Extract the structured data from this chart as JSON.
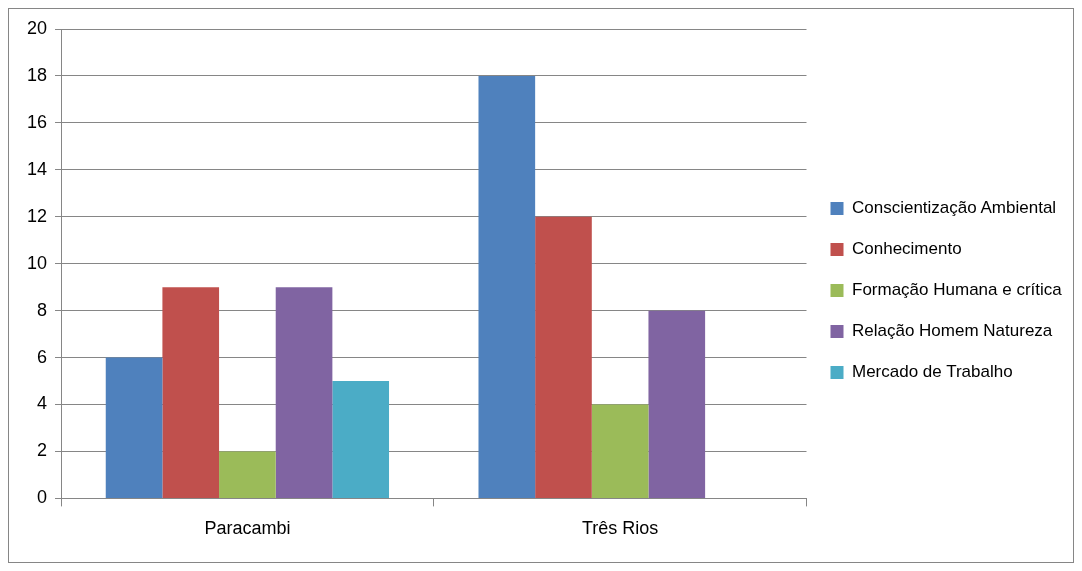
{
  "chart_data": {
    "type": "bar",
    "categories": [
      "Paracambi",
      "Três Rios"
    ],
    "series": [
      {
        "name": "Conscientização Ambiental",
        "color": "#4f81bd",
        "values": [
          6,
          18
        ]
      },
      {
        "name": "Conhecimento",
        "color": "#c0504d",
        "values": [
          9,
          12
        ]
      },
      {
        "name": "Formação Humana e crítica",
        "color": "#9bbb59",
        "values": [
          2,
          4
        ]
      },
      {
        "name": "Relação Homem Natureza",
        "color": "#8064a2",
        "values": [
          9,
          8
        ]
      },
      {
        "name": "Mercado de Trabalho",
        "color": "#4bacc6",
        "values": [
          5,
          null
        ]
      }
    ],
    "ylim": [
      0,
      20
    ],
    "yticks": [
      0,
      2,
      4,
      6,
      8,
      10,
      12,
      14,
      16,
      18,
      20
    ],
    "grid": "y",
    "legend": "right"
  }
}
